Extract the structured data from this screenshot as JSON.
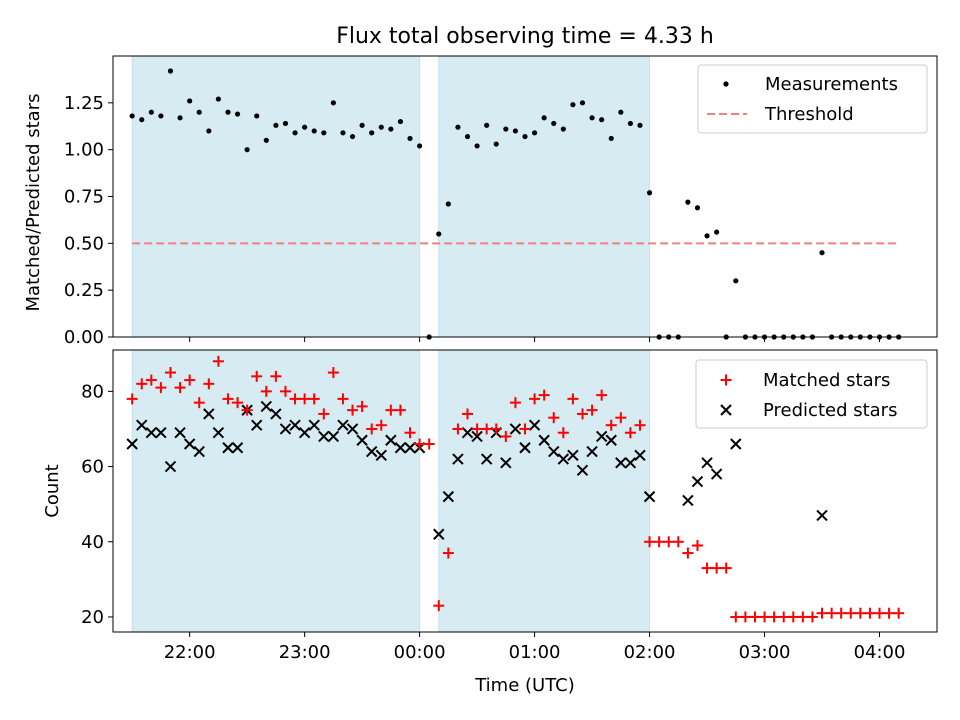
{
  "chart_data": {
    "type": "scatter",
    "title": "Flux total observing time = 4.33 h",
    "xlabel": "Time (UTC)",
    "x_ticks": [
      {
        "hours": -2,
        "label": "22:00"
      },
      {
        "hours": -1,
        "label": "23:00"
      },
      {
        "hours": 0,
        "label": "00:00"
      },
      {
        "hours": 1,
        "label": "01:00"
      },
      {
        "hours": 2,
        "label": "02:00"
      },
      {
        "hours": 3,
        "label": "03:00"
      },
      {
        "hours": 4,
        "label": "04:00"
      }
    ],
    "xlim_label": [
      "21:20",
      "04:30"
    ],
    "shaded_intervals": [
      {
        "start": "21:30",
        "end": "00:00",
        "color": "#add8e6"
      },
      {
        "start": "00:10",
        "end": "02:00",
        "color": "#add8e6"
      }
    ],
    "top_panel": {
      "ylabel": "Matched/Predicted stars",
      "ylim": [
        0,
        1.5
      ],
      "y_ticks": [
        "0.00",
        "0.25",
        "0.50",
        "0.75",
        "1.00",
        "1.25"
      ],
      "legend": {
        "location": "upper right",
        "entries": [
          "Measurements",
          "Threshold"
        ]
      },
      "threshold": {
        "name": "Threshold",
        "value": 0.5,
        "color": "#f08080",
        "from": "21:30",
        "to": "04:10"
      },
      "series": [
        {
          "name": "Measurements",
          "color": "#000000",
          "marker": "dot",
          "points": [
            [
              "21:30",
              1.18
            ],
            [
              "21:35",
              1.16
            ],
            [
              "21:40",
              1.2
            ],
            [
              "21:45",
              1.18
            ],
            [
              "21:50",
              1.42
            ],
            [
              "21:55",
              1.17
            ],
            [
              "22:00",
              1.26
            ],
            [
              "22:05",
              1.2
            ],
            [
              "22:10",
              1.1
            ],
            [
              "22:15",
              1.27
            ],
            [
              "22:20",
              1.2
            ],
            [
              "22:25",
              1.19
            ],
            [
              "22:30",
              1.0
            ],
            [
              "22:35",
              1.18
            ],
            [
              "22:40",
              1.05
            ],
            [
              "22:45",
              1.13
            ],
            [
              "22:50",
              1.14
            ],
            [
              "22:55",
              1.09
            ],
            [
              "23:00",
              1.12
            ],
            [
              "23:05",
              1.1
            ],
            [
              "23:10",
              1.09
            ],
            [
              "23:15",
              1.25
            ],
            [
              "23:20",
              1.09
            ],
            [
              "23:25",
              1.07
            ],
            [
              "23:30",
              1.13
            ],
            [
              "23:35",
              1.09
            ],
            [
              "23:40",
              1.12
            ],
            [
              "23:45",
              1.11
            ],
            [
              "23:50",
              1.15
            ],
            [
              "23:55",
              1.06
            ],
            [
              "00:00",
              1.02
            ],
            [
              "00:05",
              0.0
            ],
            [
              "00:10",
              0.55
            ],
            [
              "00:15",
              0.71
            ],
            [
              "00:20",
              1.12
            ],
            [
              "00:25",
              1.07
            ],
            [
              "00:30",
              1.02
            ],
            [
              "00:35",
              1.13
            ],
            [
              "00:40",
              1.03
            ],
            [
              "00:45",
              1.11
            ],
            [
              "00:50",
              1.1
            ],
            [
              "00:55",
              1.07
            ],
            [
              "01:00",
              1.09
            ],
            [
              "01:05",
              1.17
            ],
            [
              "01:10",
              1.14
            ],
            [
              "01:15",
              1.11
            ],
            [
              "01:20",
              1.24
            ],
            [
              "01:25",
              1.25
            ],
            [
              "01:30",
              1.17
            ],
            [
              "01:35",
              1.16
            ],
            [
              "01:40",
              1.06
            ],
            [
              "01:45",
              1.2
            ],
            [
              "01:50",
              1.14
            ],
            [
              "01:55",
              1.13
            ],
            [
              "02:00",
              0.77
            ],
            [
              "02:05",
              0.0
            ],
            [
              "02:10",
              0.0
            ],
            [
              "02:15",
              0.0
            ],
            [
              "02:20",
              0.72
            ],
            [
              "02:25",
              0.69
            ],
            [
              "02:30",
              0.54
            ],
            [
              "02:35",
              0.56
            ],
            [
              "02:40",
              0.0
            ],
            [
              "02:45",
              0.3
            ],
            [
              "02:50",
              0.0
            ],
            [
              "02:55",
              0.0
            ],
            [
              "03:00",
              0.0
            ],
            [
              "03:05",
              0.0
            ],
            [
              "03:10",
              0.0
            ],
            [
              "03:15",
              0.0
            ],
            [
              "03:20",
              0.0
            ],
            [
              "03:25",
              0.0
            ],
            [
              "03:30",
              0.45
            ],
            [
              "03:35",
              0.0
            ],
            [
              "03:40",
              0.0
            ],
            [
              "03:45",
              0.0
            ],
            [
              "03:50",
              0.0
            ],
            [
              "03:55",
              0.0
            ],
            [
              "04:00",
              0.0
            ],
            [
              "04:05",
              0.0
            ],
            [
              "04:10",
              0.0
            ]
          ]
        }
      ]
    },
    "bottom_panel": {
      "ylabel": "Count",
      "ylim": [
        16,
        91
      ],
      "y_ticks": [
        "20",
        "40",
        "60",
        "80"
      ],
      "legend": {
        "location": "upper right",
        "entries": [
          "Matched stars",
          "Predicted stars"
        ]
      },
      "series": [
        {
          "name": "Matched stars",
          "color": "#ff0000",
          "marker": "plus",
          "points": [
            [
              "21:30",
              78
            ],
            [
              "21:35",
              82
            ],
            [
              "21:40",
              83
            ],
            [
              "21:45",
              81
            ],
            [
              "21:50",
              85
            ],
            [
              "21:55",
              81
            ],
            [
              "22:00",
              83
            ],
            [
              "22:05",
              77
            ],
            [
              "22:10",
              82
            ],
            [
              "22:15",
              88
            ],
            [
              "22:20",
              78
            ],
            [
              "22:25",
              77
            ],
            [
              "22:30",
              75
            ],
            [
              "22:35",
              84
            ],
            [
              "22:40",
              80
            ],
            [
              "22:45",
              84
            ],
            [
              "22:50",
              80
            ],
            [
              "22:55",
              78
            ],
            [
              "23:00",
              78
            ],
            [
              "23:05",
              78
            ],
            [
              "23:10",
              74
            ],
            [
              "23:15",
              85
            ],
            [
              "23:20",
              78
            ],
            [
              "23:25",
              75
            ],
            [
              "23:30",
              76
            ],
            [
              "23:35",
              70
            ],
            [
              "23:40",
              71
            ],
            [
              "23:45",
              75
            ],
            [
              "23:50",
              75
            ],
            [
              "23:55",
              69
            ],
            [
              "00:00",
              66
            ],
            [
              "00:05",
              66
            ],
            [
              "00:10",
              23
            ],
            [
              "00:15",
              37
            ],
            [
              "00:20",
              70
            ],
            [
              "00:25",
              74
            ],
            [
              "00:30",
              70
            ],
            [
              "00:35",
              70
            ],
            [
              "00:40",
              70
            ],
            [
              "00:45",
              68
            ],
            [
              "00:50",
              77
            ],
            [
              "00:55",
              70
            ],
            [
              "01:00",
              78
            ],
            [
              "01:05",
              79
            ],
            [
              "01:10",
              73
            ],
            [
              "01:15",
              69
            ],
            [
              "01:20",
              78
            ],
            [
              "01:25",
              74
            ],
            [
              "01:30",
              75
            ],
            [
              "01:35",
              79
            ],
            [
              "01:40",
              71
            ],
            [
              "01:45",
              73
            ],
            [
              "01:50",
              69
            ],
            [
              "01:55",
              71
            ],
            [
              "02:00",
              40
            ],
            [
              "02:05",
              40
            ],
            [
              "02:10",
              40
            ],
            [
              "02:15",
              40
            ],
            [
              "02:20",
              37
            ],
            [
              "02:25",
              39
            ],
            [
              "02:30",
              33
            ],
            [
              "02:35",
              33
            ],
            [
              "02:40",
              33
            ],
            [
              "02:45",
              20
            ],
            [
              "02:50",
              20
            ],
            [
              "02:55",
              20
            ],
            [
              "03:00",
              20
            ],
            [
              "03:05",
              20
            ],
            [
              "03:10",
              20
            ],
            [
              "03:15",
              20
            ],
            [
              "03:20",
              20
            ],
            [
              "03:25",
              20
            ],
            [
              "03:30",
              21
            ],
            [
              "03:35",
              21
            ],
            [
              "03:40",
              21
            ],
            [
              "03:45",
              21
            ],
            [
              "03:50",
              21
            ],
            [
              "03:55",
              21
            ],
            [
              "04:00",
              21
            ],
            [
              "04:05",
              21
            ],
            [
              "04:10",
              21
            ]
          ]
        },
        {
          "name": "Predicted stars",
          "color": "#000000",
          "marker": "x",
          "points": [
            [
              "21:30",
              66
            ],
            [
              "21:35",
              71
            ],
            [
              "21:40",
              69
            ],
            [
              "21:45",
              69
            ],
            [
              "21:50",
              60
            ],
            [
              "21:55",
              69
            ],
            [
              "22:00",
              66
            ],
            [
              "22:05",
              64
            ],
            [
              "22:10",
              74
            ],
            [
              "22:15",
              69
            ],
            [
              "22:20",
              65
            ],
            [
              "22:25",
              65
            ],
            [
              "22:30",
              75
            ],
            [
              "22:35",
              71
            ],
            [
              "22:40",
              76
            ],
            [
              "22:45",
              74
            ],
            [
              "22:50",
              70
            ],
            [
              "22:55",
              71
            ],
            [
              "23:00",
              69
            ],
            [
              "23:05",
              71
            ],
            [
              "23:10",
              68
            ],
            [
              "23:15",
              68
            ],
            [
              "23:20",
              71
            ],
            [
              "23:25",
              70
            ],
            [
              "23:30",
              67
            ],
            [
              "23:35",
              64
            ],
            [
              "23:40",
              63
            ],
            [
              "23:45",
              67
            ],
            [
              "23:50",
              65
            ],
            [
              "23:55",
              65
            ],
            [
              "00:00",
              65
            ],
            [
              "00:10",
              42
            ],
            [
              "00:15",
              52
            ],
            [
              "00:20",
              62
            ],
            [
              "00:25",
              69
            ],
            [
              "00:30",
              68
            ],
            [
              "00:35",
              62
            ],
            [
              "00:40",
              69
            ],
            [
              "00:45",
              61
            ],
            [
              "00:50",
              70
            ],
            [
              "00:55",
              65
            ],
            [
              "01:00",
              71
            ],
            [
              "01:05",
              67
            ],
            [
              "01:10",
              64
            ],
            [
              "01:15",
              62
            ],
            [
              "01:20",
              63
            ],
            [
              "01:25",
              59
            ],
            [
              "01:30",
              64
            ],
            [
              "01:35",
              68
            ],
            [
              "01:40",
              67
            ],
            [
              "01:45",
              61
            ],
            [
              "01:50",
              61
            ],
            [
              "01:55",
              63
            ],
            [
              "02:00",
              52
            ],
            [
              "02:20",
              51
            ],
            [
              "02:25",
              56
            ],
            [
              "02:30",
              61
            ],
            [
              "02:35",
              58
            ],
            [
              "02:45",
              66
            ],
            [
              "03:30",
              47
            ]
          ]
        }
      ]
    }
  }
}
